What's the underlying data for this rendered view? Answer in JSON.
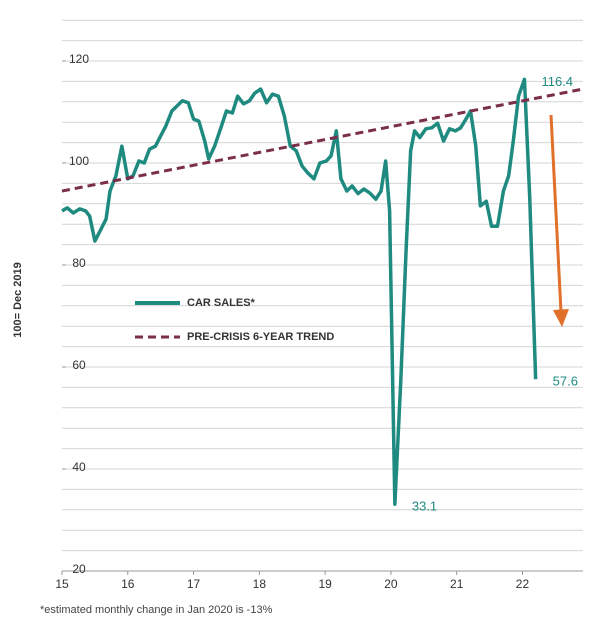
{
  "chart_data": {
    "type": "line",
    "ylabel": "100= Dec 2019",
    "footnote": "*estimated monthly change in Jan 2020 is -13%",
    "xlim": [
      15,
      22.92
    ],
    "xticks": [
      15,
      16,
      17,
      18,
      19,
      20,
      21,
      22
    ],
    "ylim": [
      20,
      130
    ],
    "yticks": [
      20,
      40,
      60,
      80,
      100,
      120
    ],
    "grid_step": 4,
    "grid": true,
    "series": [
      {
        "name": "CAR SALES*",
        "color": "#1f8a80",
        "dash": false,
        "x": [
          15.0,
          15.08,
          15.17,
          15.27,
          15.36,
          15.42,
          15.5,
          15.58,
          15.67,
          15.73,
          15.82,
          15.91,
          16.0,
          16.08,
          16.17,
          16.25,
          16.33,
          16.42,
          16.5,
          16.58,
          16.67,
          16.75,
          16.83,
          16.92,
          17.0,
          17.08,
          17.17,
          17.23,
          17.32,
          17.41,
          17.5,
          17.59,
          17.67,
          17.76,
          17.85,
          17.93,
          18.02,
          18.11,
          18.2,
          18.29,
          18.38,
          18.47,
          18.56,
          18.65,
          18.74,
          18.83,
          18.92,
          19.02,
          19.09,
          19.17,
          19.24,
          19.33,
          19.41,
          19.5,
          19.59,
          19.68,
          19.77,
          19.85,
          19.92,
          19.98,
          20.06,
          20.15,
          20.23,
          20.3,
          20.36,
          20.44,
          20.53,
          20.62,
          20.71,
          20.8,
          20.89,
          20.98,
          21.06,
          21.14,
          21.21,
          21.29,
          21.36,
          21.45,
          21.53,
          21.62,
          21.71,
          21.79,
          21.86,
          21.94,
          22.03,
          22.11,
          22.2
        ],
        "values": [
          90.6,
          91.2,
          90.2,
          91,
          90.6,
          89.6,
          84.7,
          86.7,
          89,
          94.5,
          97.5,
          103.3,
          96.9,
          97.5,
          100.4,
          100,
          102.7,
          103.3,
          105.3,
          107.3,
          110.2,
          111.2,
          112.2,
          111.8,
          108.6,
          108.2,
          104.3,
          100.8,
          103.3,
          106.7,
          110.2,
          109.8,
          113.1,
          111.6,
          112.2,
          113.7,
          114.5,
          111.8,
          113.5,
          113.1,
          109.2,
          103.3,
          102.4,
          99.4,
          98,
          96.9,
          100,
          100.4,
          101.4,
          106.3,
          96.9,
          94.5,
          95.5,
          94,
          94.9,
          94.1,
          92.9,
          94.5,
          100.4,
          90.6,
          33.1,
          57.3,
          82.7,
          102.4,
          106.3,
          105,
          106.7,
          106.9,
          107.8,
          104.3,
          106.7,
          106.3,
          106.9,
          108.6,
          110.2,
          103.3,
          91.6,
          92.5,
          87.6,
          87.6,
          94.5,
          97.5,
          104.3,
          113.1,
          116.4,
          93.3,
          57.6
        ],
        "value_labels": [
          null,
          null,
          null,
          null,
          null,
          null,
          null,
          null,
          null,
          null,
          null,
          null,
          null,
          null,
          null,
          null,
          null,
          null,
          null,
          null,
          null,
          null,
          null,
          null,
          null,
          null,
          null,
          null,
          null,
          null,
          null,
          null,
          null,
          null,
          null,
          null,
          null,
          null,
          null,
          null,
          null,
          null,
          null,
          null,
          null,
          null,
          null,
          null,
          null,
          null,
          null,
          null,
          null,
          null,
          null,
          null,
          null,
          null,
          null,
          null,
          "33.1",
          null,
          null,
          null,
          null,
          null,
          null,
          null,
          null,
          null,
          null,
          null,
          null,
          null,
          null,
          null,
          null,
          null,
          null,
          null,
          null,
          null,
          null,
          null,
          "116.4",
          null,
          "57.6"
        ]
      },
      {
        "name": "PRE-CRISIS 6-YEAR TREND",
        "color": "#7a2e4a",
        "dash": true,
        "x": [
          15,
          22.92
        ],
        "values": [
          94.5,
          114.5
        ]
      }
    ]
  }
}
